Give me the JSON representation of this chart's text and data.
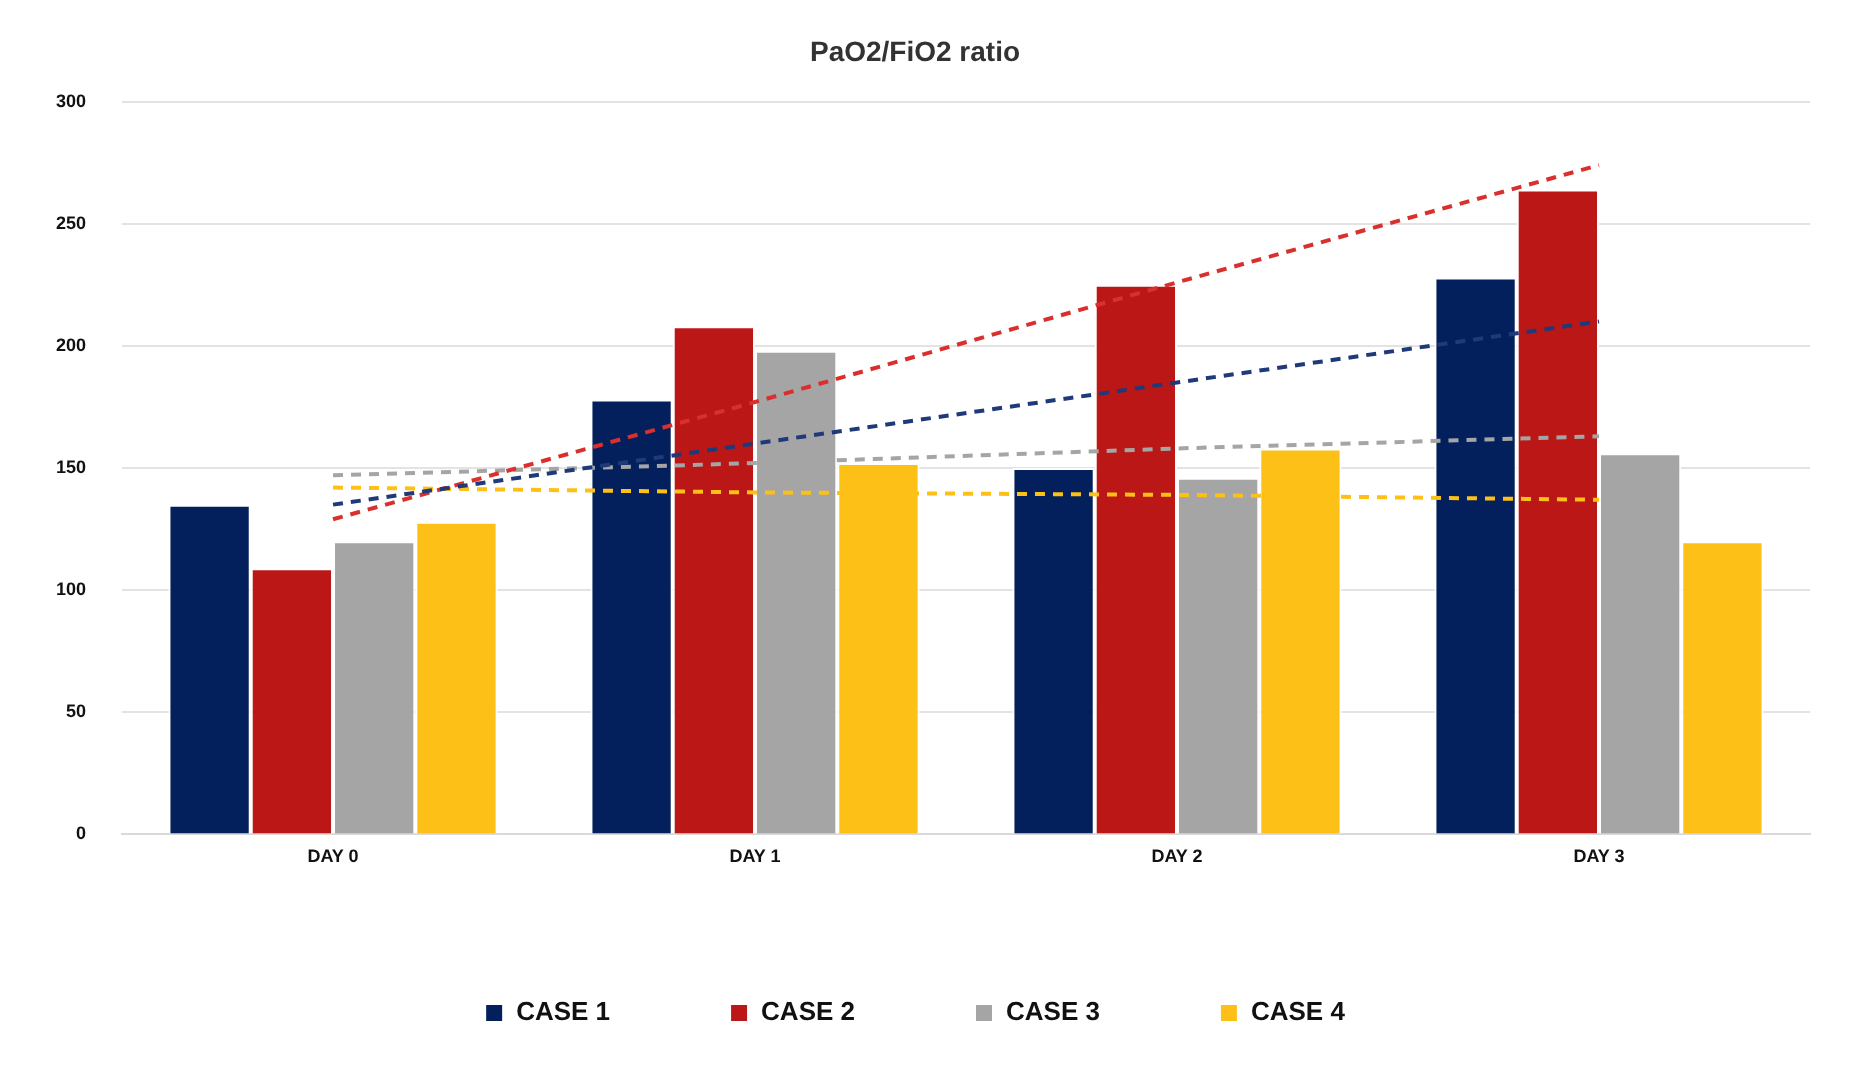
{
  "chart_data": {
    "type": "bar",
    "title": "PaO2/FiO2 ratio",
    "categories": [
      "DAY 0",
      "DAY 1",
      "DAY 2",
      "DAY 3"
    ],
    "series": [
      {
        "name": "CASE 1",
        "color": "#03205c",
        "values": [
          135,
          178,
          150,
          228
        ]
      },
      {
        "name": "CASE 2",
        "color": "#bb1716",
        "values": [
          109,
          208,
          225,
          264
        ]
      },
      {
        "name": "CASE 3",
        "color": "#a5a5a6",
        "values": [
          120,
          198,
          146,
          156
        ]
      },
      {
        "name": "CASE 4",
        "color": "#fdc016",
        "values": [
          128,
          152,
          158,
          120
        ]
      },
      {
        "type": "line",
        "color": "#1f3a78",
        "values": [
          135,
          160,
          185,
          210
        ],
        "line_style": "dashed",
        "marker": "none"
      },
      {
        "type": "line",
        "color": "#d9302e",
        "values": [
          129,
          177,
          226,
          274
        ],
        "line_style": "dashed",
        "marker": "none"
      },
      {
        "type": "line",
        "color": "#a5a5a6",
        "values": [
          147,
          152,
          158,
          163
        ],
        "line_style": "dashed",
        "marker": "none"
      },
      {
        "type": "line",
        "color": "#fdc016",
        "values": [
          142,
          140,
          139,
          137
        ],
        "line_style": "dashed",
        "marker": "none"
      }
    ],
    "ylim": [
      0,
      300
    ],
    "yticks": [
      0,
      50,
      100,
      150,
      200,
      250,
      300
    ],
    "grid": "y",
    "legend": "bottom"
  }
}
